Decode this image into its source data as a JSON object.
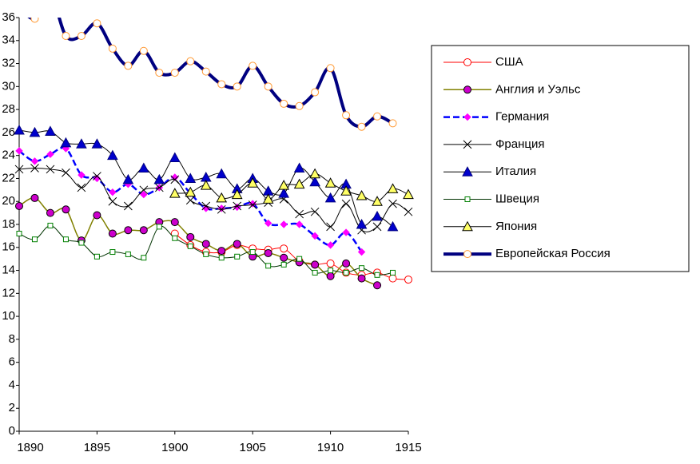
{
  "chart_data": {
    "type": "line",
    "x": [
      1890,
      1891,
      1892,
      1893,
      1894,
      1895,
      1896,
      1897,
      1898,
      1899,
      1900,
      1901,
      1902,
      1903,
      1904,
      1905,
      1906,
      1907,
      1908,
      1909,
      1910,
      1911,
      1912,
      1913,
      1914,
      1915
    ],
    "xlim": [
      1890,
      1915
    ],
    "xticks": [
      1890,
      1895,
      1900,
      1905,
      1910,
      1915
    ],
    "ylim": [
      0,
      36
    ],
    "yticks": [
      0,
      2,
      4,
      6,
      8,
      10,
      12,
      14,
      16,
      18,
      20,
      22,
      24,
      26,
      28,
      30,
      32,
      34,
      36
    ],
    "grid": false,
    "legend": "right",
    "series": [
      {
        "name": "США",
        "color": "#ff0000",
        "width": 1,
        "marker": "circle",
        "marker_fill": "#ffffff",
        "marker_stroke": "#ff0000",
        "values": [
          null,
          null,
          null,
          null,
          null,
          null,
          null,
          null,
          null,
          null,
          17.2,
          16.2,
          15.6,
          15.6,
          16.2,
          15.9,
          15.8,
          15.9,
          14.8,
          14.5,
          14.6,
          13.8,
          13.6,
          13.8,
          13.3,
          13.2
        ]
      },
      {
        "name": "Англия и Уэльс",
        "color": "#808000",
        "width": 1.5,
        "marker": "circle",
        "marker_fill": "#cc00cc",
        "marker_stroke": "#000000",
        "values": [
          19.6,
          20.3,
          19.0,
          19.3,
          16.6,
          18.8,
          17.2,
          17.5,
          17.5,
          18.2,
          18.2,
          16.9,
          16.3,
          15.7,
          16.3,
          15.2,
          15.5,
          15.1,
          14.7,
          14.5,
          13.5,
          14.6,
          13.3,
          12.7,
          null,
          null
        ]
      },
      {
        "name": "Германия",
        "color": "#0000ff",
        "width": 2.5,
        "dash": "8 4",
        "marker": "diamond",
        "marker_fill": "#ff00ff",
        "marker_stroke": "#ff00ff",
        "values": [
          24.4,
          23.5,
          24.1,
          24.6,
          22.3,
          22.0,
          20.8,
          21.5,
          20.6,
          21.2,
          22.1,
          20.7,
          19.4,
          19.4,
          19.5,
          19.8,
          18.1,
          18.0,
          18.0,
          17.0,
          16.2,
          17.3,
          15.6,
          null,
          null,
          null
        ]
      },
      {
        "name": "Франция",
        "color": "#000000",
        "width": 1,
        "marker": "cross",
        "marker_fill": "none",
        "marker_stroke": "#000000",
        "values": [
          22.8,
          22.9,
          22.8,
          22.5,
          21.2,
          22.2,
          20.0,
          19.6,
          21.0,
          21.2,
          21.9,
          20.1,
          19.6,
          19.3,
          19.6,
          19.7,
          19.9,
          20.2,
          18.9,
          19.1,
          17.8,
          19.8,
          17.5,
          17.8,
          19.8,
          19.1
        ]
      },
      {
        "name": "Италия",
        "color": "#000000",
        "width": 1,
        "marker": "triangle",
        "marker_fill": "#0000cc",
        "marker_stroke": "#000080",
        "values": [
          26.2,
          26.0,
          26.1,
          25.1,
          25.0,
          25.0,
          24.0,
          21.9,
          22.9,
          21.9,
          23.8,
          22.0,
          22.1,
          22.4,
          21.1,
          22.0,
          20.9,
          20.7,
          22.9,
          21.7,
          20.3,
          21.5,
          18.0,
          18.7,
          17.8,
          null
        ]
      },
      {
        "name": "Швеция",
        "color": "#003300",
        "width": 1,
        "marker": "square",
        "marker_fill": "#ffffff",
        "marker_stroke": "#008000",
        "values": [
          17.2,
          16.7,
          17.9,
          16.7,
          16.4,
          15.2,
          15.6,
          15.4,
          15.1,
          17.8,
          16.8,
          16.1,
          15.4,
          15.1,
          15.2,
          15.6,
          14.4,
          14.5,
          15.0,
          13.8,
          14.0,
          13.8,
          14.2,
          13.6,
          13.8,
          null
        ]
      },
      {
        "name": "Япония",
        "color": "#000000",
        "width": 1,
        "marker": "triangle",
        "marker_fill": "#ffff66",
        "marker_stroke": "#000000",
        "values": [
          null,
          null,
          null,
          null,
          null,
          null,
          null,
          null,
          null,
          null,
          20.7,
          20.8,
          21.4,
          20.3,
          20.6,
          21.6,
          20.2,
          21.4,
          21.5,
          22.4,
          21.6,
          20.9,
          20.5,
          20.0,
          21.1,
          20.6
        ]
      },
      {
        "name": "Европейская Россия",
        "color": "#000080",
        "width": 4,
        "marker": "circle",
        "marker_fill": "#ffffff",
        "marker_stroke": "#ff9933",
        "values": [
          37.0,
          35.9,
          38.0,
          34.4,
          34.4,
          35.5,
          33.3,
          31.8,
          33.1,
          31.2,
          31.2,
          32.2,
          31.3,
          30.2,
          30.0,
          31.8,
          30.0,
          28.5,
          28.3,
          29.5,
          31.6,
          27.5,
          26.5,
          27.4,
          26.8,
          null
        ]
      }
    ]
  }
}
